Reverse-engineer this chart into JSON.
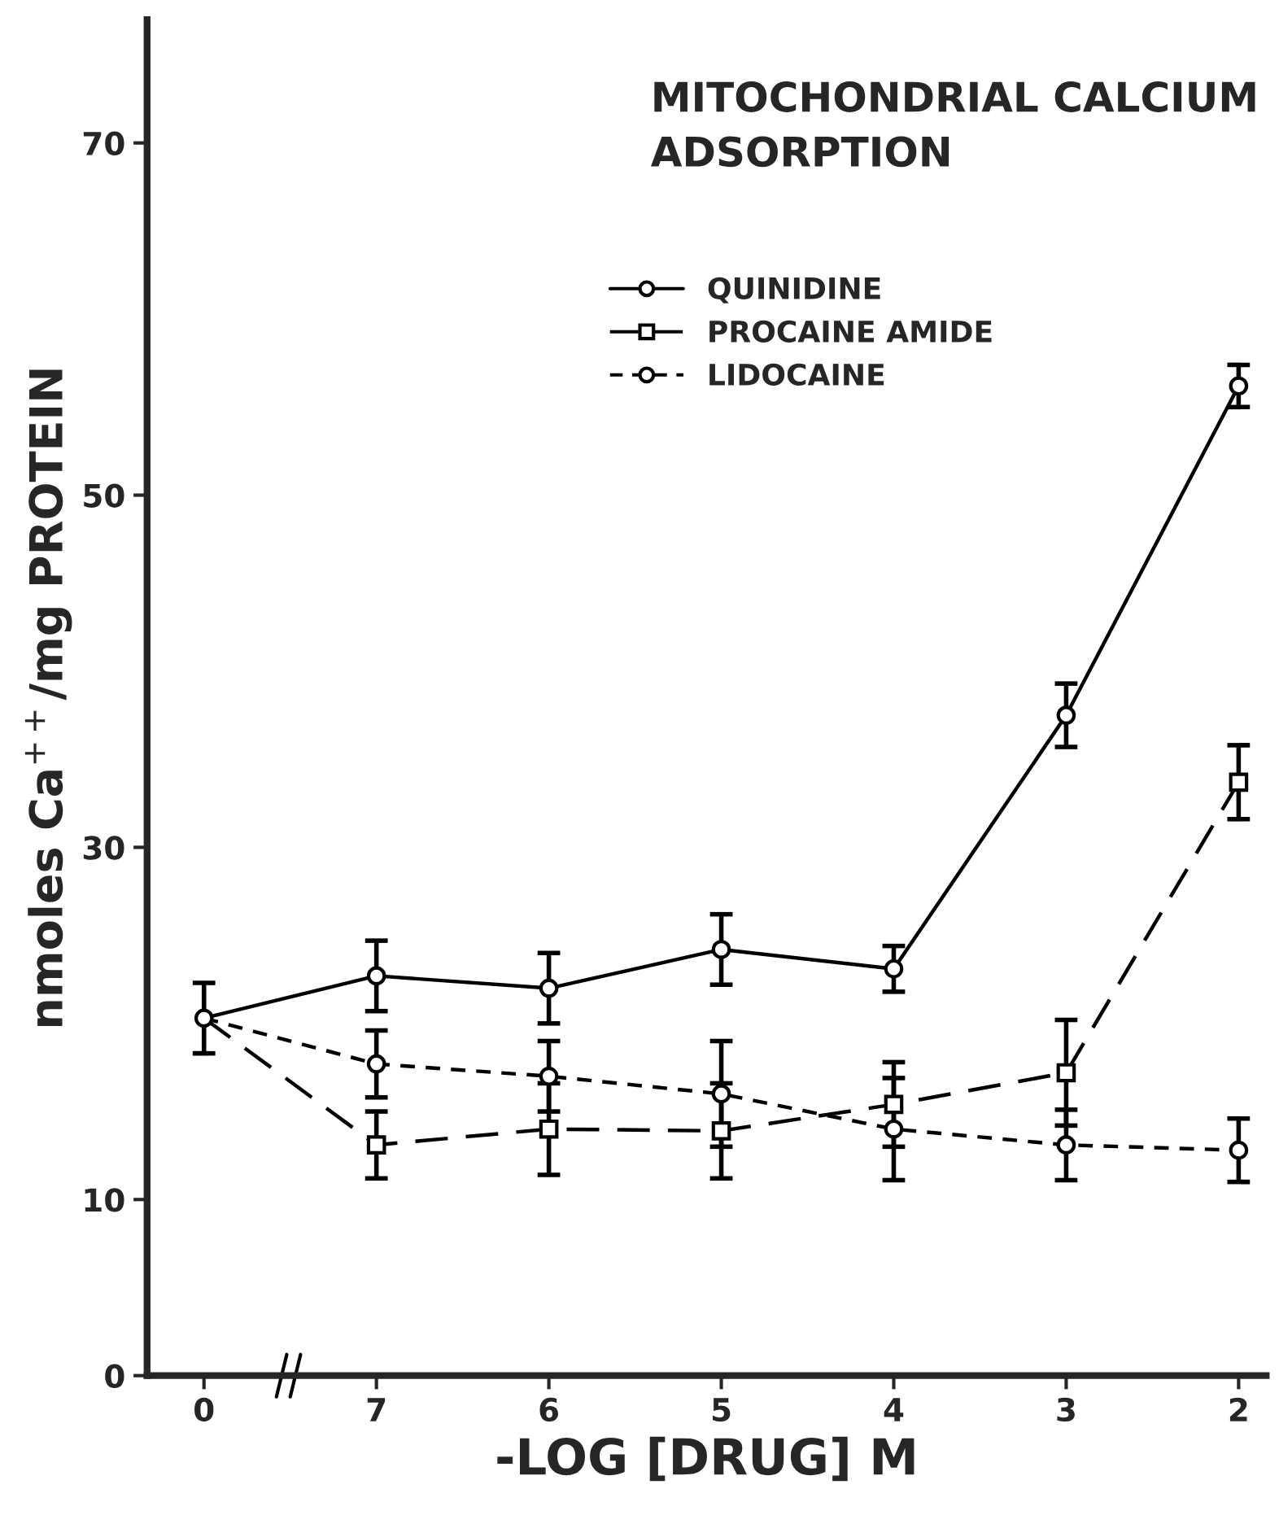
{
  "chart_data": {
    "type": "line",
    "title": "MITOCHONDRIAL CALCIUM\nADSORPTION",
    "xlabel": "-LOG [DRUG] M",
    "ylabel": "nmoles Ca$^{++}$/mg PROTEIN",
    "categories": [
      "0",
      "7",
      "6",
      "5",
      "4",
      "3",
      "2"
    ],
    "series": [
      {
        "name": "QUINIDINE",
        "color": "#000000",
        "marker": "circle",
        "line_style": "solid",
        "values": [
          20.3,
          22.7,
          22.0,
          24.2,
          23.1,
          37.5,
          56.2
        ],
        "errors": [
          2.0,
          2.0,
          2.0,
          2.0,
          1.3,
          1.8,
          1.2
        ]
      },
      {
        "name": "PROCAINE AMIDE",
        "color": "#000000",
        "marker": "square",
        "line_style": "dashed",
        "values": [
          20.3,
          13.1,
          14.0,
          13.9,
          15.4,
          17.2,
          33.7
        ],
        "errors": [
          null,
          1.9,
          2.6,
          2.7,
          2.4,
          3.0,
          2.1
        ]
      },
      {
        "name": "LIDOCAINE",
        "color": "#000000",
        "marker": "circle",
        "line_style": "dotted",
        "values": [
          20.3,
          17.7,
          17.0,
          16.0,
          14.0,
          13.1,
          12.8
        ],
        "errors": [
          null,
          1.9,
          2.0,
          3.0,
          2.9,
          2.0,
          1.8
        ]
      }
    ],
    "ylim": [
      0,
      77
    ],
    "yticks": [
      0,
      10,
      30,
      50,
      70
    ],
    "grid": false,
    "legend": "top right"
  }
}
